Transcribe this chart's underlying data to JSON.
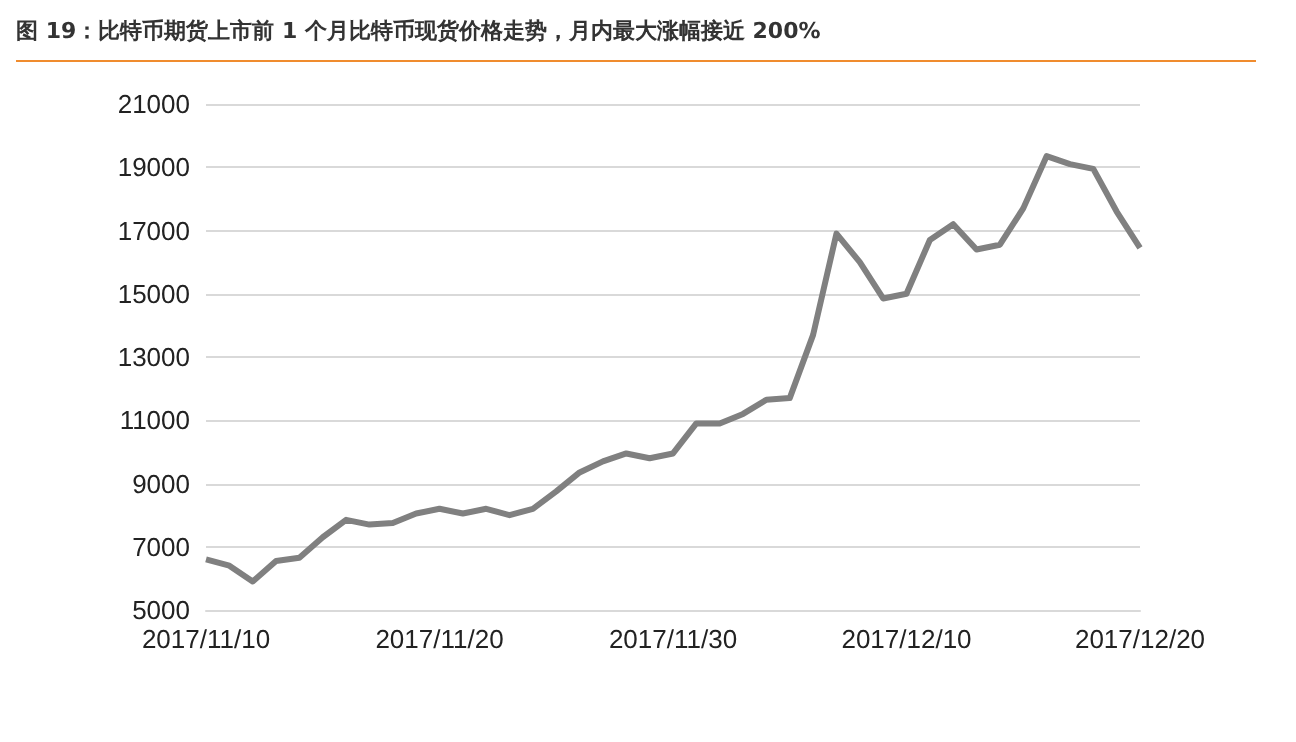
{
  "chart_data": {
    "type": "line",
    "title": "图 19：比特币期货上市前 1 个月比特币现货价格走势，月内最大涨幅接近 200%",
    "x": [
      "2017-11-10",
      "2017-11-11",
      "2017-11-12",
      "2017-11-13",
      "2017-11-14",
      "2017-11-15",
      "2017-11-16",
      "2017-11-17",
      "2017-11-18",
      "2017-11-19",
      "2017-11-20",
      "2017-11-21",
      "2017-11-22",
      "2017-11-23",
      "2017-11-24",
      "2017-11-25",
      "2017-11-26",
      "2017-11-27",
      "2017-11-28",
      "2017-11-29",
      "2017-11-30",
      "2017-12-01",
      "2017-12-02",
      "2017-12-03",
      "2017-12-04",
      "2017-12-05",
      "2017-12-06",
      "2017-12-07",
      "2017-12-08",
      "2017-12-09",
      "2017-12-10",
      "2017-12-11",
      "2017-12-12",
      "2017-12-13",
      "2017-12-14",
      "2017-12-15",
      "2017-12-16",
      "2017-12-17",
      "2017-12-18",
      "2017-12-19",
      "2017-12-20"
    ],
    "series": [
      {
        "color": "#808080",
        "values": [
          6600,
          6400,
          5900,
          6550,
          6650,
          7300,
          7850,
          7700,
          7750,
          8050,
          8200,
          8050,
          8200,
          8000,
          8200,
          8750,
          9350,
          9700,
          9950,
          9800,
          9950,
          10900,
          10900,
          11200,
          11650,
          11700,
          13700,
          16900,
          16000,
          14850,
          15000,
          16700,
          17200,
          16400,
          16550,
          17700,
          19350,
          19100,
          18950,
          17600,
          16450
        ]
      }
    ],
    "xlim": [
      "2017-11-10",
      "2017-12-20"
    ],
    "xticks": [
      {
        "value": "2017-11-10",
        "label": "2017/11/10"
      },
      {
        "value": "2017-11-20",
        "label": "2017/11/20"
      },
      {
        "value": "2017-11-30",
        "label": "2017/11/30"
      },
      {
        "value": "2017-12-10",
        "label": "2017/12/10"
      },
      {
        "value": "2017-12-20",
        "label": "2017/12/20"
      }
    ],
    "ylim": [
      5000,
      21000
    ],
    "yticks": [
      5000,
      7000,
      9000,
      11000,
      13000,
      15000,
      17000,
      19000,
      21000
    ],
    "grid": "y",
    "marker": "none",
    "line_style": "solid"
  }
}
